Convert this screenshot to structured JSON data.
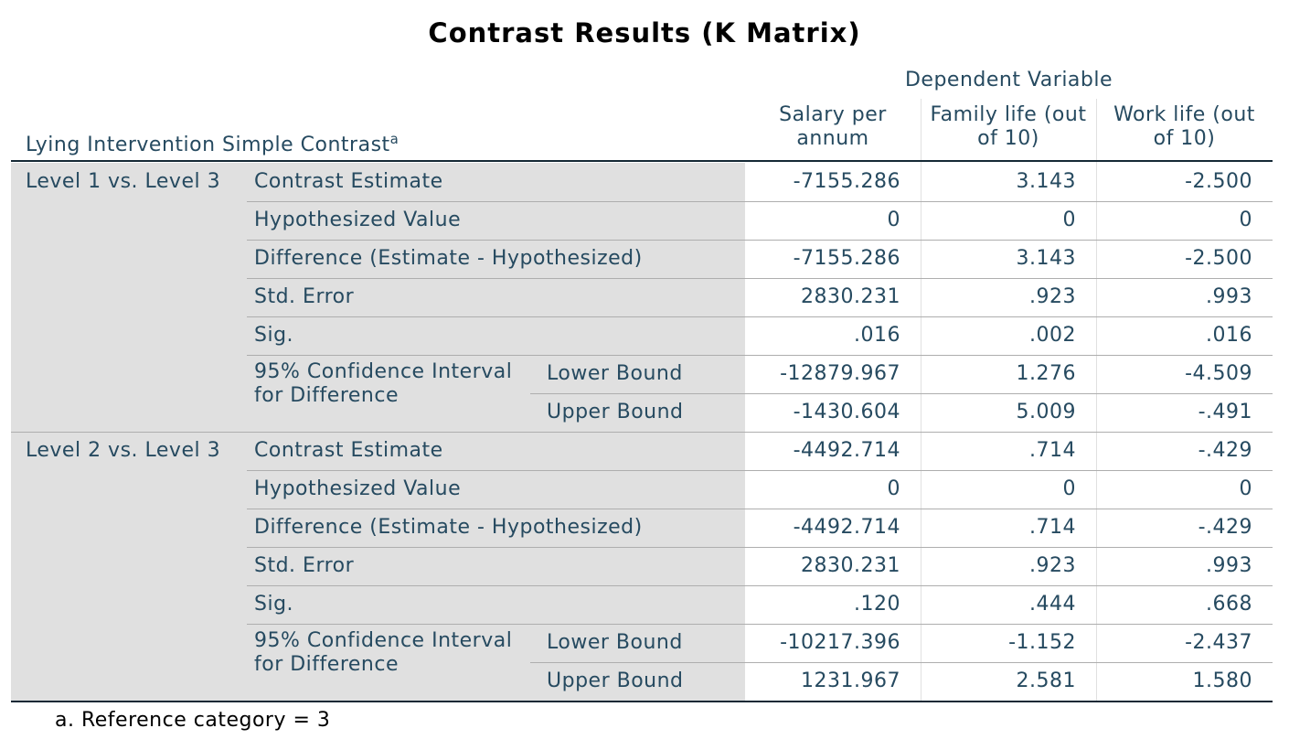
{
  "title": "Contrast Results (K Matrix)",
  "header": {
    "dependent_variable": "Dependent Variable",
    "row_header": "Lying Intervention Simple Contrast",
    "row_header_sup": "a",
    "columns": [
      "Salary per annum",
      "Family life (out of 10)",
      "Work life (out of 10)"
    ]
  },
  "groups": [
    {
      "label": "Level 1 vs. Level 3",
      "rows": [
        {
          "label": "Contrast Estimate",
          "values": [
            "-7155.286",
            "3.143",
            "-2.500"
          ]
        },
        {
          "label": "Hypothesized Value",
          "values": [
            "0",
            "0",
            "0"
          ]
        },
        {
          "label": "Difference (Estimate - Hypothesized)",
          "values": [
            "-7155.286",
            "3.143",
            "-2.500"
          ]
        },
        {
          "label": "Std. Error",
          "values": [
            "2830.231",
            ".923",
            ".993"
          ]
        },
        {
          "label": "Sig.",
          "values": [
            ".016",
            ".002",
            ".016"
          ]
        }
      ],
      "interval": {
        "label": "95% Confidence Interval for Difference",
        "bounds": [
          {
            "label": "Lower Bound",
            "values": [
              "-12879.967",
              "1.276",
              "-4.509"
            ]
          },
          {
            "label": "Upper Bound",
            "values": [
              "-1430.604",
              "5.009",
              "-.491"
            ]
          }
        ]
      }
    },
    {
      "label": "Level 2 vs. Level 3",
      "rows": [
        {
          "label": "Contrast Estimate",
          "values": [
            "-4492.714",
            ".714",
            "-.429"
          ]
        },
        {
          "label": "Hypothesized Value",
          "values": [
            "0",
            "0",
            "0"
          ]
        },
        {
          "label": "Difference (Estimate - Hypothesized)",
          "values": [
            "-4492.714",
            ".714",
            "-.429"
          ]
        },
        {
          "label": "Std. Error",
          "values": [
            "2830.231",
            ".923",
            ".993"
          ]
        },
        {
          "label": "Sig.",
          "values": [
            ".120",
            ".444",
            ".668"
          ]
        }
      ],
      "interval": {
        "label": "95% Confidence Interval for Difference",
        "bounds": [
          {
            "label": "Lower Bound",
            "values": [
              "-10217.396",
              "-1.152",
              "-2.437"
            ]
          },
          {
            "label": "Upper Bound",
            "values": [
              "1231.967",
              "2.581",
              "1.580"
            ]
          }
        ]
      }
    }
  ],
  "footnote": "a. Reference category = 3"
}
